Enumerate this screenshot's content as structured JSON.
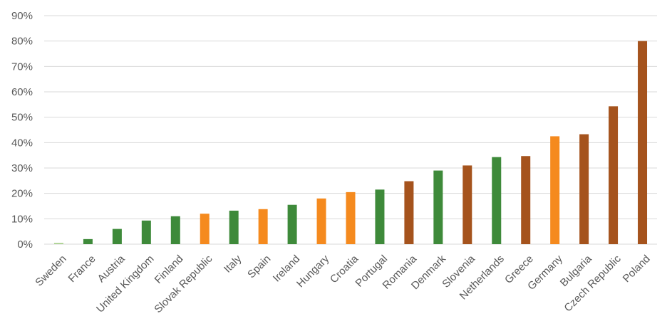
{
  "chart_data": {
    "type": "bar",
    "title": "",
    "xlabel": "",
    "ylabel": "",
    "ylim": [
      0,
      90
    ],
    "y_unit": "%",
    "grid": true,
    "legend": "none",
    "y_ticks": [
      "0%",
      "10%",
      "20%",
      "30%",
      "40%",
      "50%",
      "60%",
      "70%",
      "80%",
      "90%"
    ],
    "colors": {
      "light_green": "#a9d18e",
      "green": "#3e8a3a",
      "orange": "#f58a1e",
      "brown": "#a5531d",
      "gridline": "#d9d9d9",
      "text": "#595959"
    },
    "categories": [
      "Sweden",
      "France",
      "Austria",
      "United Kingdom",
      "Finland",
      "Slovak Republic",
      "Italy",
      "Spain",
      "Ireland",
      "Hungary",
      "Croatia",
      "Portugal",
      "Romania",
      "Denmark",
      "Slovenia",
      "Netherlands",
      "Greece",
      "Germany",
      "Bulgaria",
      "Czech Republic",
      "Poland"
    ],
    "values": [
      0.5,
      2,
      6,
      9.3,
      11,
      12,
      13.2,
      13.8,
      15.5,
      18,
      20.5,
      21.5,
      24.8,
      29,
      31,
      34.3,
      34.7,
      42.5,
      43.3,
      54.3,
      80
    ],
    "bar_colors": [
      "light_green",
      "green",
      "green",
      "green",
      "green",
      "orange",
      "green",
      "orange",
      "green",
      "orange",
      "orange",
      "green",
      "brown",
      "green",
      "brown",
      "green",
      "brown",
      "orange",
      "brown",
      "brown",
      "brown"
    ]
  }
}
